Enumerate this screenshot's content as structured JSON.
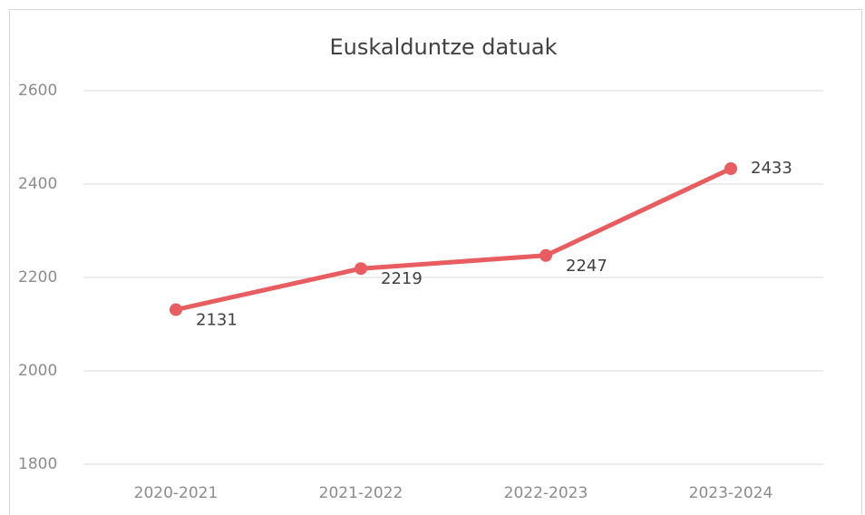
{
  "chart_data": {
    "type": "line",
    "title": "Euskalduntze datuak",
    "categories": [
      "2020-2021",
      "2021-2022",
      "2022-2023",
      "2023-2024"
    ],
    "values": [
      2131,
      2219,
      2247,
      2433
    ],
    "color": "#e85d5f",
    "ylim": [
      1800,
      2600
    ],
    "yticks": [
      1800,
      2000,
      2200,
      2400,
      2600
    ],
    "grid": true
  }
}
